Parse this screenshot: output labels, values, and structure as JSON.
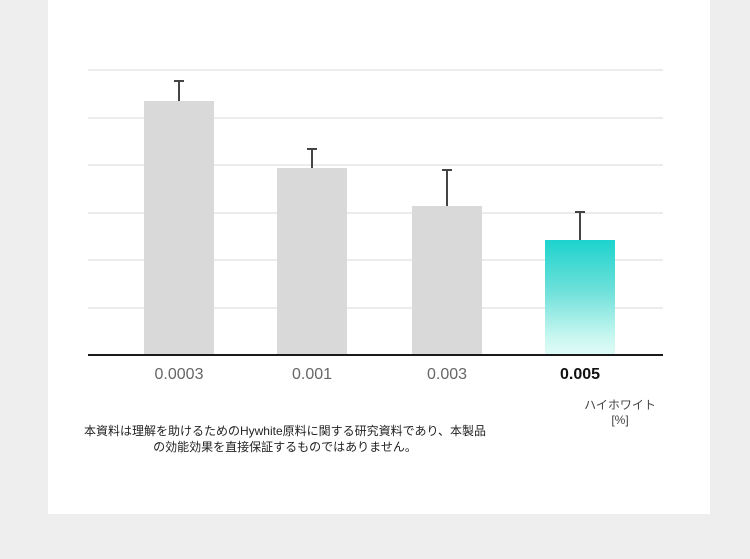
{
  "chart_data": {
    "type": "bar",
    "title": "",
    "xlabel": "ハイホワイト [%]",
    "ylabel": "",
    "y_tick_labels_shown": false,
    "grid": true,
    "grid_lines": 6,
    "ylim": [
      0,
      6
    ],
    "categories": [
      "0.0003",
      "0.001",
      "0.003",
      "0.005"
    ],
    "values": [
      5.33,
      3.92,
      3.12,
      2.4
    ],
    "error": [
      0.44,
      0.42,
      0.78,
      0.61
    ],
    "highlight_index": 3,
    "colors": {
      "bar": "#d9d9d9",
      "highlight_top": "#1dd3cd",
      "highlight_bottom": "#dffbf7",
      "error_bar": "#444444",
      "axis": "#1a1a1a",
      "grid": "#ececec"
    }
  },
  "unit_label": {
    "line1": "ハイホワイト",
    "line2": "[%]"
  },
  "disclaimer": {
    "line1": "本資料は理解を助けるためのHywhite原料に関する研究資料であり、本製品",
    "line2": "の効能効果を直接保証するものではありません。"
  }
}
